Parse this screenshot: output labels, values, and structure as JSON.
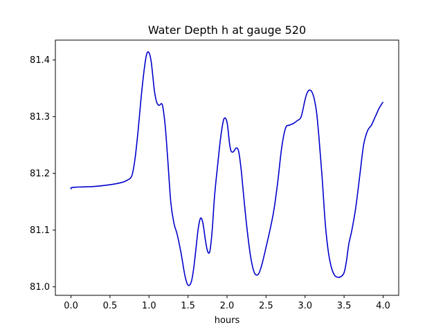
{
  "chart_data": {
    "type": "line",
    "title": "Water Depth h at gauge 520",
    "xlabel": "hours",
    "ylabel": "",
    "xlim": [
      -0.2,
      4.2
    ],
    "ylim": [
      80.985,
      81.435
    ],
    "xticks": [
      0.0,
      0.5,
      1.0,
      1.5,
      2.0,
      2.5,
      3.0,
      3.5,
      4.0
    ],
    "xtick_labels": [
      "0.0",
      "0.5",
      "1.0",
      "1.5",
      "2.0",
      "2.5",
      "3.0",
      "3.5",
      "4.0"
    ],
    "yticks": [
      81.0,
      81.1,
      81.2,
      81.3,
      81.4
    ],
    "ytick_labels": [
      "81.0",
      "81.1",
      "81.2",
      "81.3",
      "81.4"
    ],
    "grid": false,
    "color": "#0000cc",
    "series": [
      {
        "x": [
          0.0,
          0.01,
          0.1,
          0.3,
          0.5,
          0.65,
          0.72,
          0.78,
          0.82,
          0.86,
          0.9,
          0.94,
          0.97,
          1.0,
          1.03,
          1.07,
          1.1,
          1.13,
          1.16,
          1.18,
          1.21,
          1.24,
          1.28,
          1.32,
          1.36,
          1.41,
          1.46,
          1.5,
          1.54,
          1.57,
          1.6,
          1.63,
          1.66,
          1.69,
          1.72,
          1.75,
          1.78,
          1.81,
          1.84,
          1.88,
          1.92,
          1.96,
          2.0,
          2.03,
          2.05,
          2.08,
          2.12,
          2.15,
          2.18,
          2.21,
          2.25,
          2.3,
          2.35,
          2.4,
          2.44,
          2.47,
          2.5,
          2.55,
          2.6,
          2.65,
          2.7,
          2.75,
          2.8,
          2.85,
          2.9,
          2.95,
          3.0,
          3.03,
          3.06,
          3.09,
          3.12,
          3.15,
          3.18,
          3.22,
          3.26,
          3.3,
          3.34,
          3.38,
          3.42,
          3.46,
          3.5,
          3.53,
          3.56,
          3.6,
          3.65,
          3.7,
          3.75,
          3.8,
          3.85,
          3.9,
          3.95,
          4.0
        ],
        "values": [
          81.172,
          81.175,
          81.176,
          81.177,
          81.18,
          81.184,
          81.188,
          81.196,
          81.225,
          81.275,
          81.335,
          81.385,
          81.41,
          81.413,
          81.395,
          81.345,
          81.325,
          81.32,
          81.323,
          81.315,
          81.28,
          81.225,
          81.148,
          81.112,
          81.093,
          81.06,
          81.02,
          81.003,
          81.008,
          81.03,
          81.065,
          81.102,
          81.121,
          81.113,
          81.085,
          81.063,
          81.063,
          81.1,
          81.16,
          81.215,
          81.265,
          81.296,
          81.29,
          81.255,
          81.24,
          81.238,
          81.245,
          81.238,
          81.208,
          81.165,
          81.11,
          81.055,
          81.025,
          81.022,
          81.036,
          81.052,
          81.07,
          81.1,
          81.135,
          81.185,
          81.245,
          81.28,
          81.285,
          81.288,
          81.293,
          81.3,
          81.33,
          81.343,
          81.347,
          81.343,
          81.33,
          81.305,
          81.26,
          81.19,
          81.11,
          81.06,
          81.033,
          81.02,
          81.017,
          81.018,
          81.025,
          81.045,
          81.075,
          81.1,
          81.14,
          81.195,
          81.25,
          81.275,
          81.285,
          81.3,
          81.315,
          81.326
        ]
      }
    ]
  }
}
